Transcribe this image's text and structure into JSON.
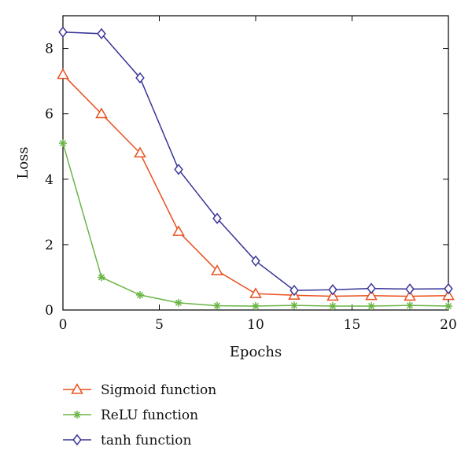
{
  "chart_data": {
    "type": "line",
    "title": "",
    "xlabel": "Epochs",
    "ylabel": "Loss",
    "xlim": [
      0,
      20
    ],
    "ylim": [
      0,
      9
    ],
    "xticks": [
      0,
      5,
      10,
      15,
      20
    ],
    "yticks": [
      0,
      2,
      4,
      6,
      8
    ],
    "grid": false,
    "legend_position": "bottom-left",
    "x": [
      0,
      2,
      4,
      6,
      8,
      10,
      12,
      14,
      16,
      18,
      20
    ],
    "series": [
      {
        "name": "Sigmoid function",
        "marker": "triangle",
        "color": "#e8501e",
        "values": [
          7.2,
          6.0,
          4.8,
          2.4,
          1.2,
          0.5,
          0.45,
          0.42,
          0.44,
          0.42,
          0.44
        ]
      },
      {
        "name": "ReLU function",
        "marker": "asterisk",
        "color": "#6ab545",
        "values": [
          5.1,
          1.0,
          0.46,
          0.22,
          0.13,
          0.12,
          0.14,
          0.12,
          0.12,
          0.14,
          0.12
        ]
      },
      {
        "name": "tanh function",
        "marker": "diamond",
        "color": "#3a3597",
        "values": [
          8.5,
          8.45,
          7.1,
          4.3,
          2.8,
          1.5,
          0.6,
          0.62,
          0.66,
          0.64,
          0.65
        ]
      }
    ]
  }
}
